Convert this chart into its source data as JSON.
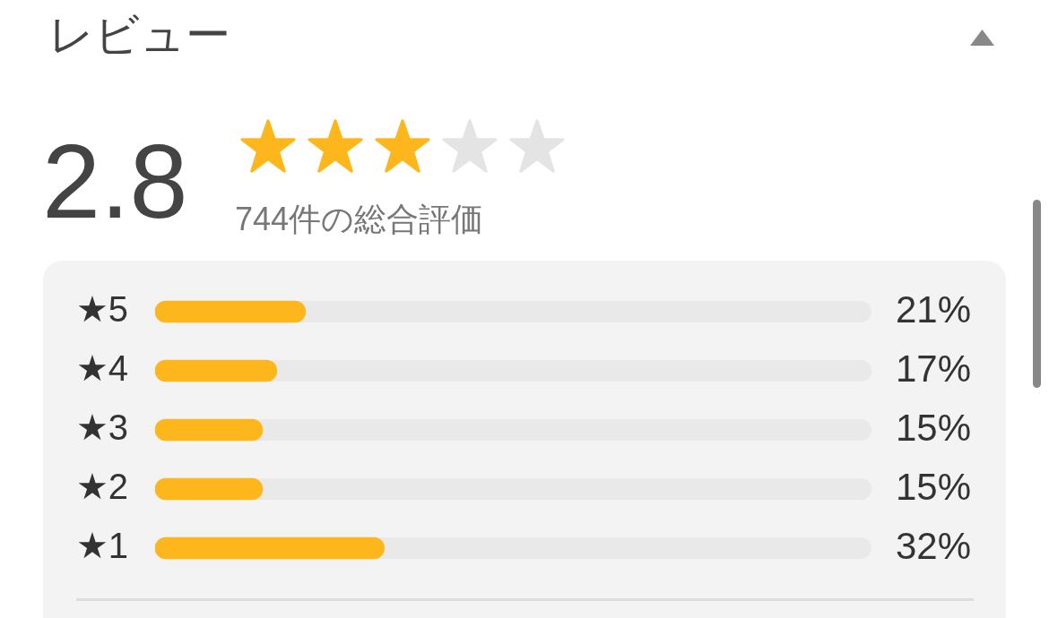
{
  "chart_data": {
    "type": "bar",
    "orientation": "horizontal",
    "title": "レビュー",
    "categories": [
      "★5",
      "★4",
      "★3",
      "★2",
      "★1"
    ],
    "values": [
      21,
      17,
      15,
      15,
      32
    ],
    "value_labels": [
      "21%",
      "17%",
      "15%",
      "15%",
      "32%"
    ],
    "color": "#fdb71c",
    "xlim": [
      0,
      100
    ],
    "tick_labels": "y",
    "annotations": [
      "2.8",
      "744件の総合評価"
    ]
  }
}
